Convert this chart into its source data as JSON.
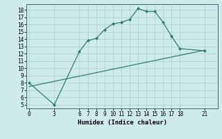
{
  "xlabel": "Humidex (Indice chaleur)",
  "x_ticks": [
    0,
    3,
    6,
    7,
    8,
    9,
    10,
    11,
    12,
    13,
    14,
    15,
    16,
    17,
    18,
    21
  ],
  "xlim": [
    -0.3,
    22.5
  ],
  "ylim": [
    4.5,
    18.8
  ],
  "yticks": [
    5,
    6,
    7,
    8,
    9,
    10,
    11,
    12,
    13,
    14,
    15,
    16,
    17,
    18
  ],
  "line1_x": [
    0,
    3,
    6,
    7,
    8,
    9,
    10,
    11,
    12,
    13,
    14,
    15,
    16,
    17,
    18,
    21
  ],
  "line1_y": [
    8.0,
    5.0,
    12.3,
    13.8,
    14.1,
    15.3,
    16.1,
    16.3,
    16.7,
    18.2,
    17.8,
    17.8,
    16.3,
    14.4,
    12.7,
    12.4
  ],
  "line2_x": [
    0,
    21
  ],
  "line2_y": [
    7.5,
    12.5
  ],
  "line_color": "#2d7f6e",
  "bg_color": "#ceeaeb",
  "grid_color": "#aad4d5",
  "tick_fontsize": 5.5,
  "xlabel_fontsize": 6.5
}
